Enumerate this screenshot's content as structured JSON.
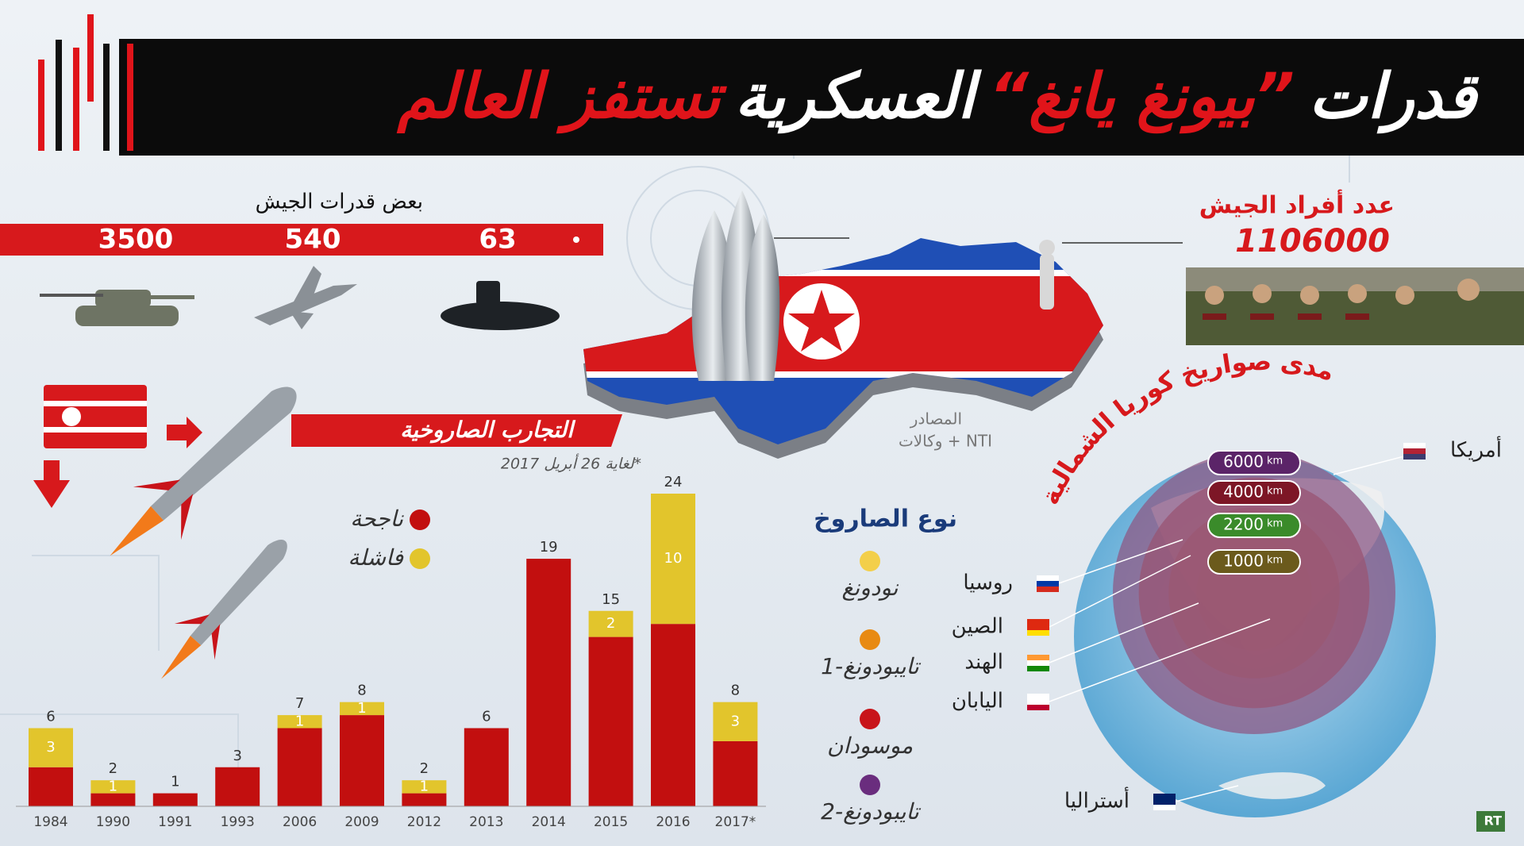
{
  "header": {
    "title_parts": [
      "قدرات",
      "”بيونغ يانغ“",
      "العسكرية",
      "تستفز العالم"
    ]
  },
  "army_capabilities": {
    "heading": "بعض قدرات الجيش",
    "values": [
      3500,
      540,
      63
    ]
  },
  "army_personnel": {
    "heading": "عدد أفراد الجيش",
    "value": 1106000
  },
  "sources": {
    "heading": "المصادر",
    "text": "NTI + وكالات"
  },
  "chart_data": {
    "type": "bar",
    "stacked": true,
    "title": "التجارب الصاروخية",
    "note": "*لغاية 26 أبريل 2017",
    "categories": [
      "1984",
      "1990",
      "1991",
      "1993",
      "2006",
      "2009",
      "2012",
      "2013",
      "2014",
      "2015",
      "2016",
      "2017*"
    ],
    "series": [
      {
        "name": "ناجحة",
        "color": "#c20f0f",
        "values": [
          3,
          1,
          1,
          3,
          6,
          7,
          1,
          6,
          19,
          13,
          14,
          5
        ]
      },
      {
        "name": "فاشلة",
        "color": "#e2c52c",
        "values": [
          3,
          1,
          0,
          0,
          1,
          1,
          1,
          0,
          0,
          2,
          10,
          3
        ]
      }
    ],
    "totals": [
      6,
      2,
      1,
      3,
      7,
      8,
      2,
      6,
      19,
      15,
      24,
      8
    ]
  },
  "missile_types": {
    "heading": "نوع الصاروخ",
    "items": [
      {
        "name": "نودونغ",
        "color": "#f3cf4a"
      },
      {
        "name": "تايبودونغ-1",
        "color": "#e88a12"
      },
      {
        "name": "موسودان",
        "color": "#c8141a"
      },
      {
        "name": "تايبودونغ-2",
        "color": "#6a2d7e"
      }
    ]
  },
  "missile_range": {
    "title": "مدى صواريخ كوريا الشمالية",
    "unit": "km",
    "rings": [
      {
        "value": 6000,
        "color": "#8d5a86",
        "label_color": "#5b2468"
      },
      {
        "value": 4000,
        "color": "#b8463e",
        "label_color": "#7d1626"
      },
      {
        "value": 2200,
        "color": "#d9782e",
        "label_color": "#3a8b2a"
      },
      {
        "value": 1000,
        "color": "#d8b43e",
        "label_color": "#6b5a1c"
      }
    ],
    "countries": [
      "أمريكا",
      "روسيا",
      "الصين",
      "الهند",
      "اليابان",
      "أستراليا"
    ]
  },
  "logo": "RT"
}
